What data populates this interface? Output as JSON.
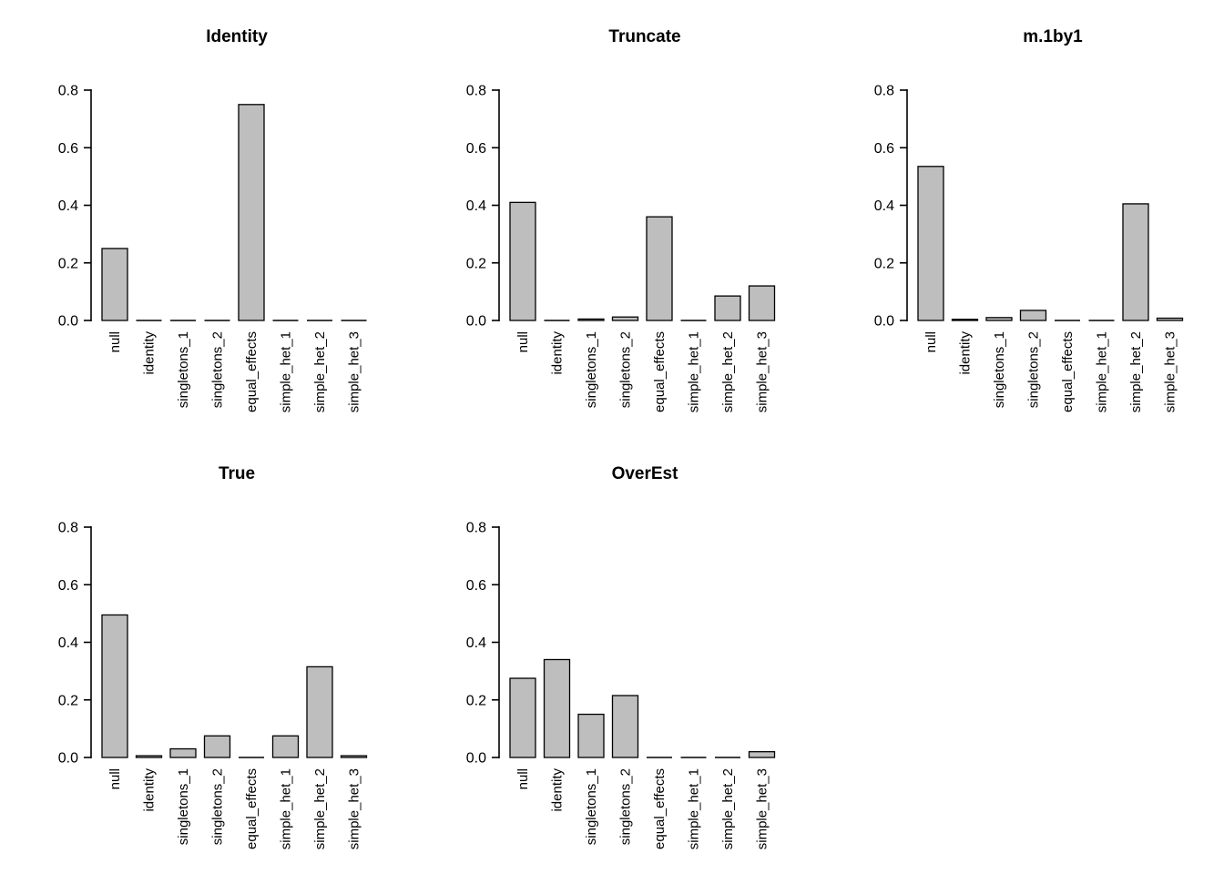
{
  "page": {
    "background": "#ffffff",
    "bar_fill": "#bebebe",
    "bar_border": "#000000",
    "axis_color": "#000000"
  },
  "chart_data": [
    {
      "type": "bar",
      "title": "Identity",
      "categories": [
        "null",
        "identity",
        "singletons_1",
        "singletons_2",
        "equal_effects",
        "simple_het_1",
        "simple_het_2",
        "simple_het_3"
      ],
      "values": [
        0.25,
        0,
        0,
        0,
        0.75,
        0,
        0,
        0
      ],
      "ylim": [
        0,
        0.8
      ],
      "yticks": [
        0,
        0.2,
        0.4,
        0.6,
        0.8
      ],
      "xlabel": "",
      "ylabel": "",
      "grid": false,
      "legend": false
    },
    {
      "type": "bar",
      "title": "Truncate",
      "categories": [
        "null",
        "identity",
        "singletons_1",
        "singletons_2",
        "equal_effects",
        "simple_het_1",
        "simple_het_2",
        "simple_het_3"
      ],
      "values": [
        0.41,
        0,
        0.005,
        0.012,
        0.36,
        0,
        0.085,
        0.12
      ],
      "ylim": [
        0,
        0.8
      ],
      "yticks": [
        0,
        0.2,
        0.4,
        0.6,
        0.8
      ],
      "xlabel": "",
      "ylabel": "",
      "grid": false,
      "legend": false
    },
    {
      "type": "bar",
      "title": "m.1by1",
      "categories": [
        "null",
        "identity",
        "singletons_1",
        "singletons_2",
        "equal_effects",
        "simple_het_1",
        "simple_het_2",
        "simple_het_3"
      ],
      "values": [
        0.535,
        0.004,
        0.01,
        0.035,
        0.002,
        0,
        0.405,
        0.008
      ],
      "ylim": [
        0,
        0.8
      ],
      "yticks": [
        0,
        0.2,
        0.4,
        0.6,
        0.8
      ],
      "xlabel": "",
      "ylabel": "",
      "grid": false,
      "legend": false
    },
    {
      "type": "bar",
      "title": "True",
      "categories": [
        "null",
        "identity",
        "singletons_1",
        "singletons_2",
        "equal_effects",
        "simple_het_1",
        "simple_het_2",
        "simple_het_3"
      ],
      "values": [
        0.495,
        0.006,
        0.03,
        0.075,
        0.002,
        0.075,
        0.315,
        0.006
      ],
      "ylim": [
        0,
        0.8
      ],
      "yticks": [
        0,
        0.2,
        0.4,
        0.6,
        0.8
      ],
      "xlabel": "",
      "ylabel": "",
      "grid": false,
      "legend": false
    },
    {
      "type": "bar",
      "title": "OverEst",
      "categories": [
        "null",
        "identity",
        "singletons_1",
        "singletons_2",
        "equal_effects",
        "simple_het_1",
        "simple_het_2",
        "simple_het_3"
      ],
      "values": [
        0.275,
        0.34,
        0.15,
        0.215,
        0,
        0.002,
        0.002,
        0.02
      ],
      "ylim": [
        0,
        0.8
      ],
      "yticks": [
        0,
        0.2,
        0.4,
        0.6,
        0.8
      ],
      "xlabel": "",
      "ylabel": "",
      "grid": false,
      "legend": false
    }
  ]
}
